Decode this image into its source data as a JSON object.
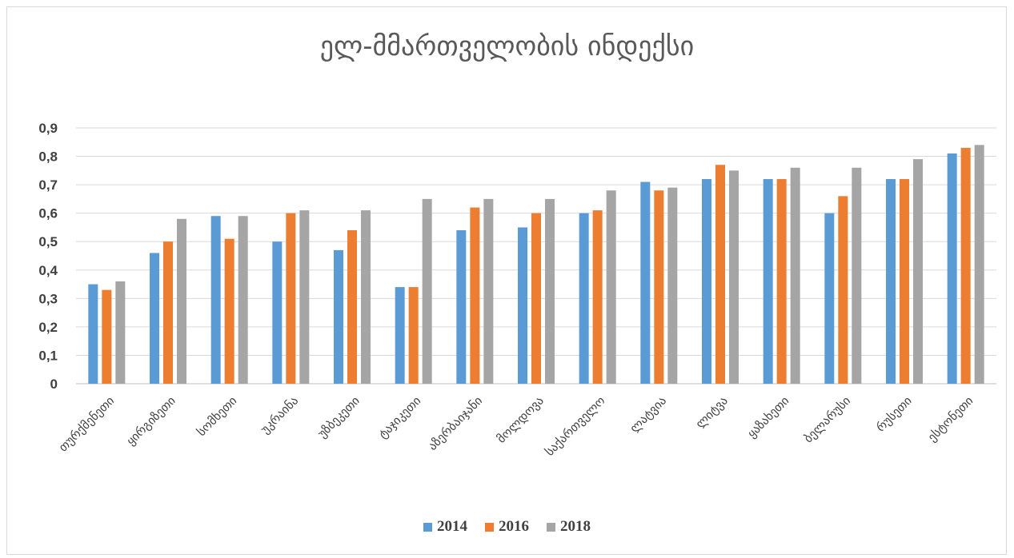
{
  "chart_data": {
    "type": "bar",
    "title": "ელ-მმართველობის ინდექსი",
    "categories": [
      "თურქმენეთი",
      "ყირგიზეთი",
      "სომხეთი",
      "უკრაინა",
      "უზბეკეთი",
      "ტაჯიკეთი",
      "აზერბაიჯანი",
      "მოლდოვა",
      "საქართველო",
      "ლატვია",
      "ლიტვა",
      "ყაზახეთი",
      "ბელარუსი",
      "რუსეთი",
      "ესტონეთი"
    ],
    "series": [
      {
        "name": "2014",
        "color": "#5b9bd5",
        "values": [
          0.35,
          0.46,
          0.59,
          0.5,
          0.47,
          0.34,
          0.54,
          0.55,
          0.6,
          0.71,
          0.72,
          0.72,
          0.6,
          0.72,
          0.81
        ]
      },
      {
        "name": "2016",
        "color": "#ed7d31",
        "values": [
          0.33,
          0.5,
          0.51,
          0.6,
          0.54,
          0.34,
          0.62,
          0.6,
          0.61,
          0.68,
          0.77,
          0.72,
          0.66,
          0.72,
          0.83
        ]
      },
      {
        "name": "2018",
        "color": "#a5a5a5",
        "values": [
          0.36,
          0.58,
          0.59,
          0.61,
          0.61,
          0.65,
          0.65,
          0.65,
          0.68,
          0.69,
          0.75,
          0.76,
          0.76,
          0.79,
          0.84
        ]
      }
    ],
    "yticks": [
      "0",
      "0,1",
      "0,2",
      "0,3",
      "0,4",
      "0,5",
      "0,6",
      "0,7",
      "0,8",
      "0,9"
    ],
    "ylim": [
      0,
      0.9
    ],
    "grid": true,
    "legend": "bottom-center"
  }
}
